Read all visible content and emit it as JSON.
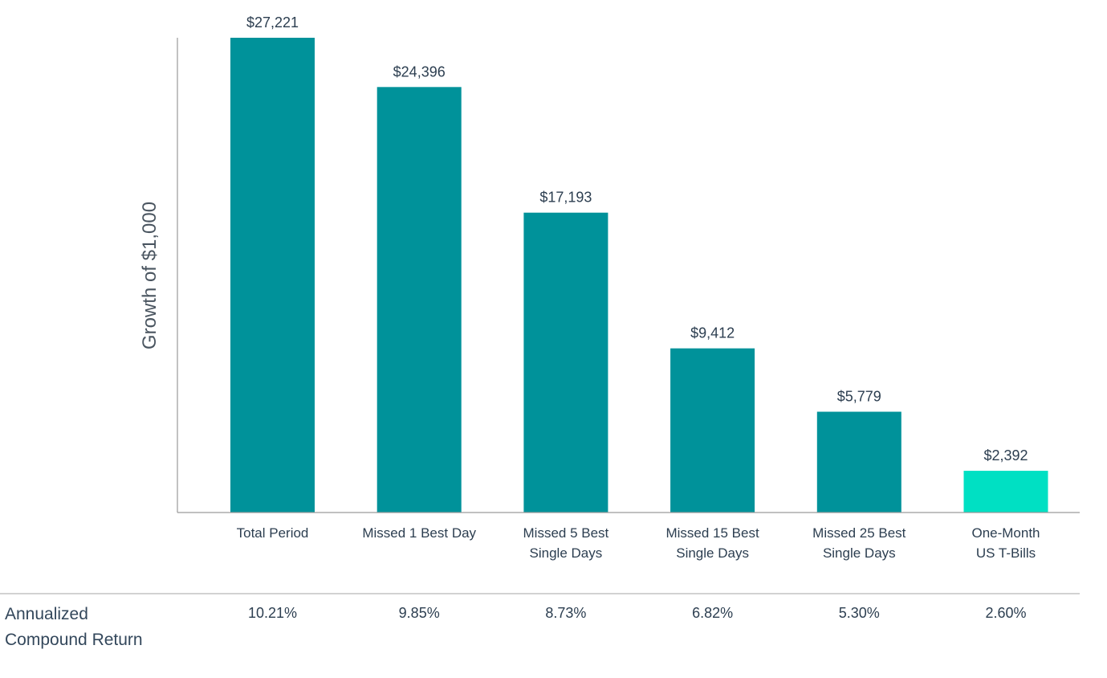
{
  "chart_data": {
    "type": "bar",
    "ylabel": "Growth of $1,000",
    "categories": [
      [
        "Total Period"
      ],
      [
        "Missed 1 Best Day"
      ],
      [
        "Missed 5 Best",
        "Single Days"
      ],
      [
        "Missed 15 Best",
        "Single Days"
      ],
      [
        "Missed 25 Best",
        "Single Days"
      ],
      [
        "One-Month",
        "US T-Bills"
      ]
    ],
    "values": [
      27221,
      24396,
      17193,
      9412,
      5779,
      2392
    ],
    "value_labels": [
      "$27,221",
      "$24,396",
      "$17,193",
      "$9,412",
      "$5,779",
      "$2,392"
    ],
    "bar_colors": [
      "#00929a",
      "#00929a",
      "#00929a",
      "#00929a",
      "#00929a",
      "#00e0c3"
    ],
    "ylim": [
      0,
      27221
    ],
    "grid": false,
    "annualized_row": {
      "label": [
        "Annualized",
        "Compound Return"
      ],
      "values": [
        "10.21%",
        "9.85%",
        "8.73%",
        "6.82%",
        "5.30%",
        "2.60%"
      ]
    },
    "colors": {
      "axis": "#9a9a9a",
      "divider": "#b8b8b8"
    }
  }
}
